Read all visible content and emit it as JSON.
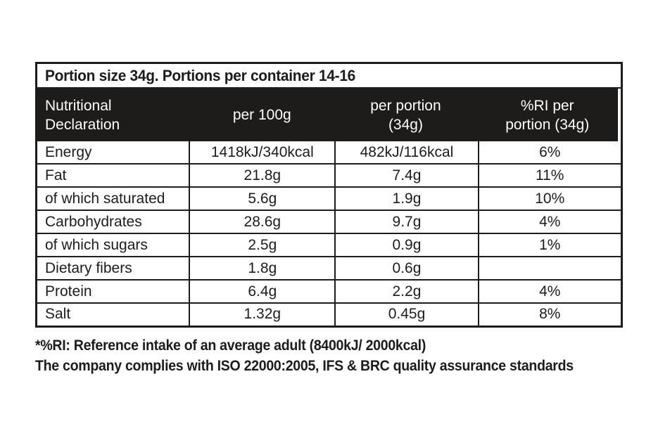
{
  "colors": {
    "ink": "#1e1b1b",
    "header_bg": "#1e1b1b",
    "header_text": "#ffffff",
    "background": "#ffffff"
  },
  "table": {
    "title": "Portion size 34g. Portions per container 14-16",
    "columns": [
      "Nutritional\nDeclaration",
      "per 100g",
      "per portion\n(34g)",
      "%RI per\nportion (34g)"
    ],
    "rows": [
      {
        "label": "Energy",
        "per_100g": "1418kJ/340kcal",
        "per_portion": "482kJ/116kcal",
        "ri_percent": "6%"
      },
      {
        "label": "Fat",
        "per_100g": "21.8g",
        "per_portion": "7.4g",
        "ri_percent": "11%"
      },
      {
        "label": "of which saturated",
        "per_100g": "5.6g",
        "per_portion": "1.9g",
        "ri_percent": "10%"
      },
      {
        "label": "Carbohydrates",
        "per_100g": "28.6g",
        "per_portion": "9.7g",
        "ri_percent": "4%"
      },
      {
        "label": "of which sugars",
        "per_100g": "2.5g",
        "per_portion": "0.9g",
        "ri_percent": "1%"
      },
      {
        "label": "Dietary fibers",
        "per_100g": "1.8g",
        "per_portion": "0.6g",
        "ri_percent": ""
      },
      {
        "label": "Protein",
        "per_100g": "6.4g",
        "per_portion": "2.2g",
        "ri_percent": "4%"
      },
      {
        "label": "Salt",
        "per_100g": "1.32g",
        "per_portion": "0.45g",
        "ri_percent": "8%"
      }
    ]
  },
  "footnotes": [
    "*%RI: Reference intake of an average adult (8400kJ/ 2000kcal)",
    "The company complies with ISO 22000:2005, IFS & BRC quality assurance standards"
  ]
}
